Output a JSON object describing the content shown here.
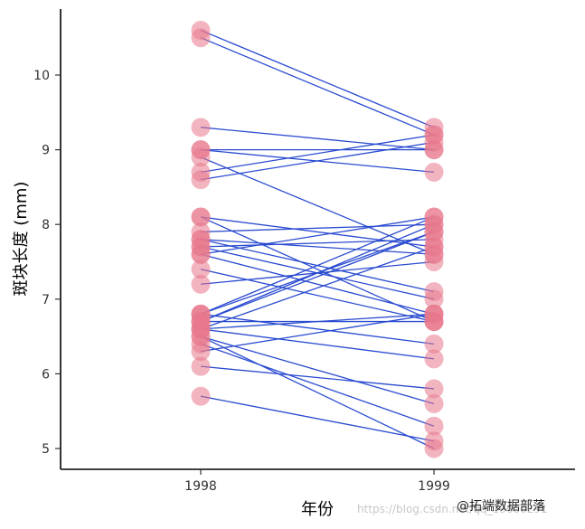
{
  "chart_data": {
    "type": "scatter",
    "subtype": "paired-slope",
    "title": "",
    "xlabel": "年份",
    "ylabel": "斑块长度 (mm)",
    "categories": [
      "1998",
      "1999"
    ],
    "yticks": [
      5,
      6,
      7,
      8,
      9,
      10
    ],
    "ylim": [
      4.8,
      10.9
    ],
    "grid": false,
    "point_color": "#e8788c",
    "line_color": "#2a4bd0",
    "pairs": [
      [
        10.6,
        9.3
      ],
      [
        10.5,
        9.2
      ],
      [
        9.3,
        9.0
      ],
      [
        9.0,
        9.0
      ],
      [
        9.0,
        8.7
      ],
      [
        8.9,
        7.6
      ],
      [
        8.7,
        9.2
      ],
      [
        8.6,
        9.1
      ],
      [
        8.1,
        7.7
      ],
      [
        8.1,
        6.7
      ],
      [
        7.9,
        8.0
      ],
      [
        7.8,
        7.6
      ],
      [
        7.8,
        7.1
      ],
      [
        7.7,
        7.0
      ],
      [
        7.7,
        7.8
      ],
      [
        7.6,
        8.1
      ],
      [
        7.6,
        6.8
      ],
      [
        7.4,
        6.7
      ],
      [
        7.2,
        7.5
      ],
      [
        6.8,
        8.1
      ],
      [
        6.8,
        7.9
      ],
      [
        6.8,
        6.4
      ],
      [
        6.7,
        8.0
      ],
      [
        6.7,
        7.9
      ],
      [
        6.7,
        6.7
      ],
      [
        6.6,
        7.7
      ],
      [
        6.6,
        6.8
      ],
      [
        6.6,
        6.2
      ],
      [
        6.5,
        5.6
      ],
      [
        6.5,
        5.0
      ],
      [
        6.4,
        5.3
      ],
      [
        6.3,
        6.8
      ],
      [
        6.1,
        5.8
      ],
      [
        5.7,
        5.1
      ]
    ]
  },
  "watermark": {
    "brand": "@拓端数据部落",
    "url": "https://blog.csdn.net/qq_19600291"
  }
}
